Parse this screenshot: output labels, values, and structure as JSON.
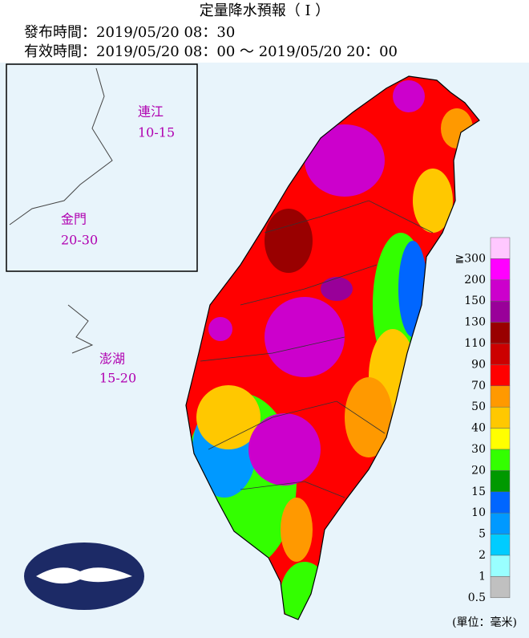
{
  "header": {
    "title": "定量降水預報（ I ）",
    "issued": "發布時間：2019/05/20 08：30",
    "valid": "有效時間：2019/05/20 08：00 〜 2019/05/20 20：00"
  },
  "islands": [
    {
      "name": "連江",
      "range": "10-15"
    },
    {
      "name": "金門",
      "range": "20-30"
    },
    {
      "name": "澎湖",
      "range": "15-20"
    }
  ],
  "legend": {
    "levels": [
      "≧300",
      "200",
      "150",
      "130",
      "110",
      "90",
      "70",
      "50",
      "40",
      "30",
      "20",
      "15",
      "10",
      "5",
      "2",
      "1",
      "0.5"
    ],
    "colors": [
      "#ffc8ff",
      "#ff00ff",
      "#cc00cc",
      "#990099",
      "#990000",
      "#cc0000",
      "#ff0000",
      "#ff9900",
      "#ffc800",
      "#ffff00",
      "#33ff00",
      "#009900",
      "#0066ff",
      "#0099ff",
      "#00ccff",
      "#99ffff",
      "#c0c0c0"
    ],
    "unit": "(單位：毫米)"
  }
}
